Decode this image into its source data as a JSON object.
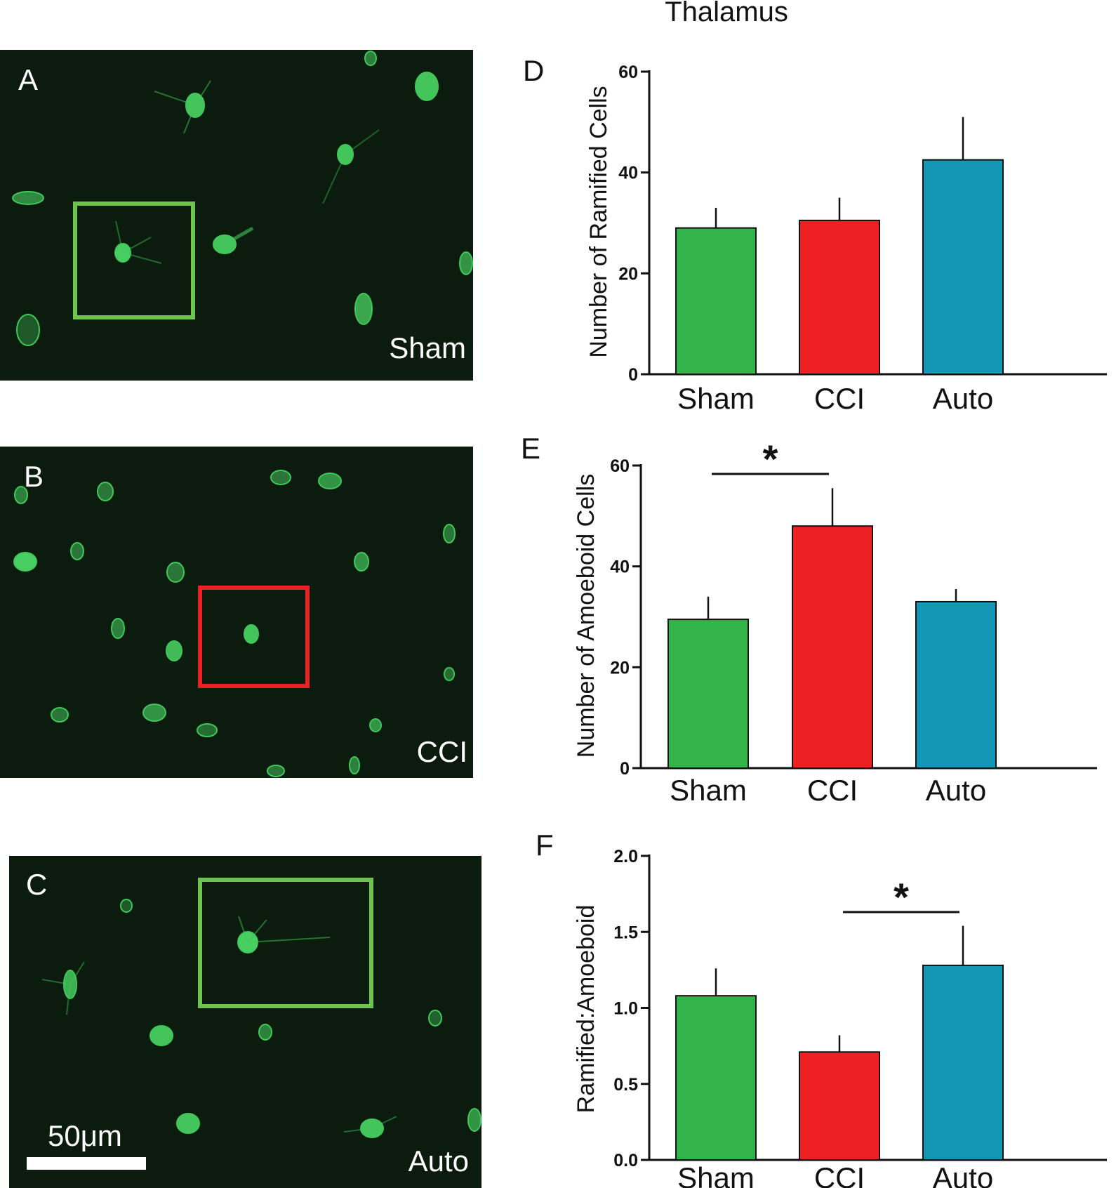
{
  "figure_title": "Thalamus",
  "colors": {
    "Sham": "#33b44a",
    "CCI": "#ee2024",
    "Auto": "#1497b4",
    "micrograph_bg": "#0b1c0e",
    "cell": "#4fe36a"
  },
  "micrographs": [
    {
      "panel": "A",
      "condition": "Sham",
      "box_color": "#6fc34f"
    },
    {
      "panel": "B",
      "condition": "CCI",
      "box_color": "#ee2024"
    },
    {
      "panel": "C",
      "condition": "Auto",
      "box_color": "#6fc34f",
      "scale_bar_label": "50μm"
    }
  ],
  "chart_data": [
    {
      "panel": "D",
      "type": "bar",
      "categories": [
        "Sham",
        "CCI",
        "Auto"
      ],
      "values": [
        29,
        30.5,
        42.5
      ],
      "errors": [
        4,
        4.5,
        8.5
      ],
      "ylabel": "Number of Ramified Cells",
      "ylim": [
        0,
        60
      ],
      "yticks": [
        "0",
        "20",
        "40",
        "60"
      ],
      "significance": []
    },
    {
      "panel": "E",
      "type": "bar",
      "categories": [
        "Sham",
        "CCI",
        "Auto"
      ],
      "values": [
        29.5,
        48,
        33
      ],
      "errors": [
        4.5,
        7.5,
        2.5
      ],
      "ylabel": "Number of Amoeboid Cells",
      "ylim": [
        0,
        60
      ],
      "yticks": [
        "0",
        "20",
        "40",
        "60"
      ],
      "significance": [
        {
          "from": "Sham",
          "to": "CCI",
          "label": "*"
        }
      ]
    },
    {
      "panel": "F",
      "type": "bar",
      "categories": [
        "Sham",
        "CCI",
        "Auto"
      ],
      "values": [
        1.08,
        0.71,
        1.28
      ],
      "errors": [
        0.18,
        0.11,
        0.26
      ],
      "ylabel": "Ramified:Amoeboid",
      "ylim": [
        0,
        2
      ],
      "yticks": [
        "0.0",
        "0.5",
        "1.0",
        "1.5",
        "2.0"
      ],
      "significance": [
        {
          "from": "CCI",
          "to": "Auto",
          "label": "*"
        }
      ]
    }
  ]
}
